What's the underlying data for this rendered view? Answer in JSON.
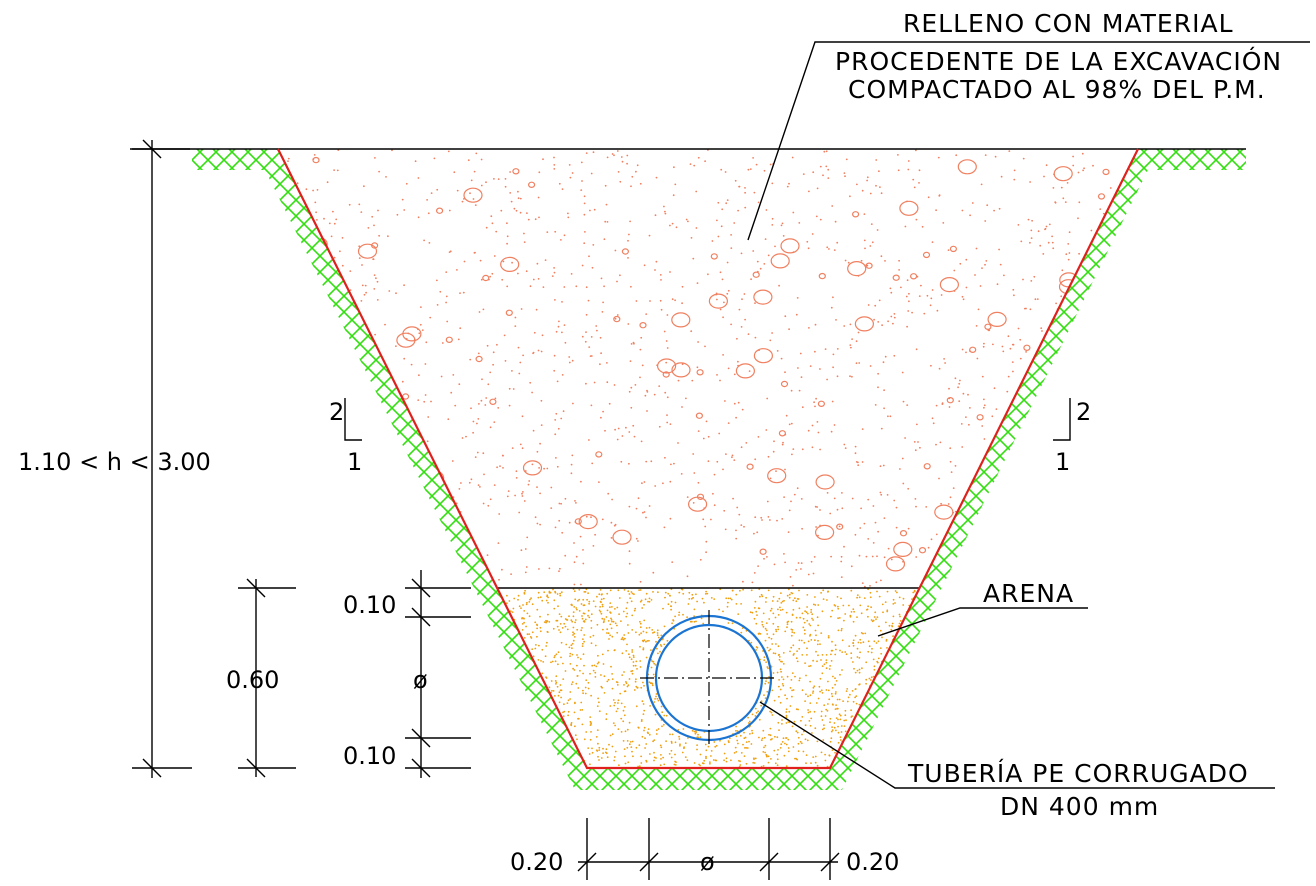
{
  "labels": {
    "fill_line1": "RELLENO  CON  MATERIAL",
    "fill_line2": "PROCEDENTE  DE  LA  EXCAVACIÓN",
    "fill_line3": "COMPACTADO  AL  98%  DEL  P.M.",
    "sand": "ARENA",
    "pipe_line1": "TUBERÍA  PE  CORRUGADO",
    "pipe_line2": "DN  400  mm"
  },
  "dimensions": {
    "height_range": "1.10  <  h  <  3.00",
    "bedding_total": "0.60",
    "top_cover": "0.10",
    "pipe_diameter_v": "ø",
    "bottom_bed": "0.10",
    "side_left": "0.20",
    "pipe_diameter_h": "ø",
    "side_right": "0.20"
  },
  "slopes": {
    "left_rise": "2",
    "left_run": "1",
    "right_rise": "2",
    "right_run": "1"
  },
  "colors": {
    "trench_wall": "#e0201c",
    "ground_hatch": "#33dd11",
    "fill_material": "#f08060",
    "sand": "#f0a010",
    "pipe": "#1b74d1",
    "lines": "#000000"
  }
}
